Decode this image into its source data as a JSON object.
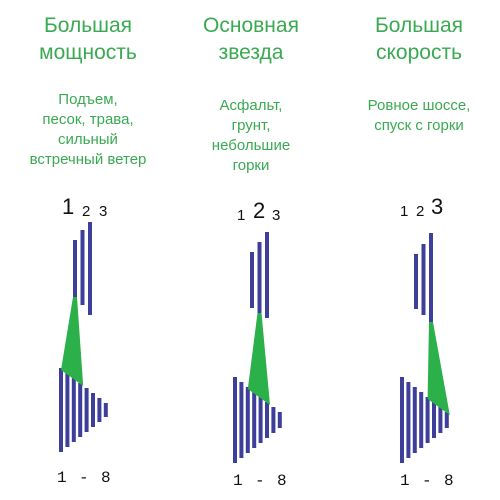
{
  "modes": [
    {
      "title": [
        "Большая",
        "мощность"
      ],
      "description": [
        "Подъем,",
        "песок, трава,",
        "сильный",
        "встречный ветер"
      ],
      "front_labels": [
        "1",
        "2",
        "3"
      ],
      "active_front": 1,
      "active_rear_range": [
        1,
        4
      ],
      "rear_label": [
        "1",
        "-",
        "8"
      ]
    },
    {
      "title": [
        "Основная",
        "звезда"
      ],
      "description": [
        "Асфальт,",
        "грунт,",
        "небольшие",
        "горки"
      ],
      "front_labels": [
        "1",
        "2",
        "3"
      ],
      "active_front": 2,
      "active_rear_range": [
        3,
        6
      ],
      "rear_label": [
        "1",
        "-",
        "8"
      ]
    },
    {
      "title": [
        "Большая",
        "скорость"
      ],
      "description": [
        "Ровное шоссе,",
        "спуск с горки"
      ],
      "front_labels": [
        "1",
        "2",
        "3"
      ],
      "active_front": 3,
      "active_rear_range": [
        5,
        8
      ],
      "rear_label": [
        "1",
        "-",
        "8"
      ]
    }
  ],
  "colors": {
    "text_green": "#3aaa52",
    "cog_blue": "#3d3f9a",
    "chain_green": "#2cb04a"
  }
}
